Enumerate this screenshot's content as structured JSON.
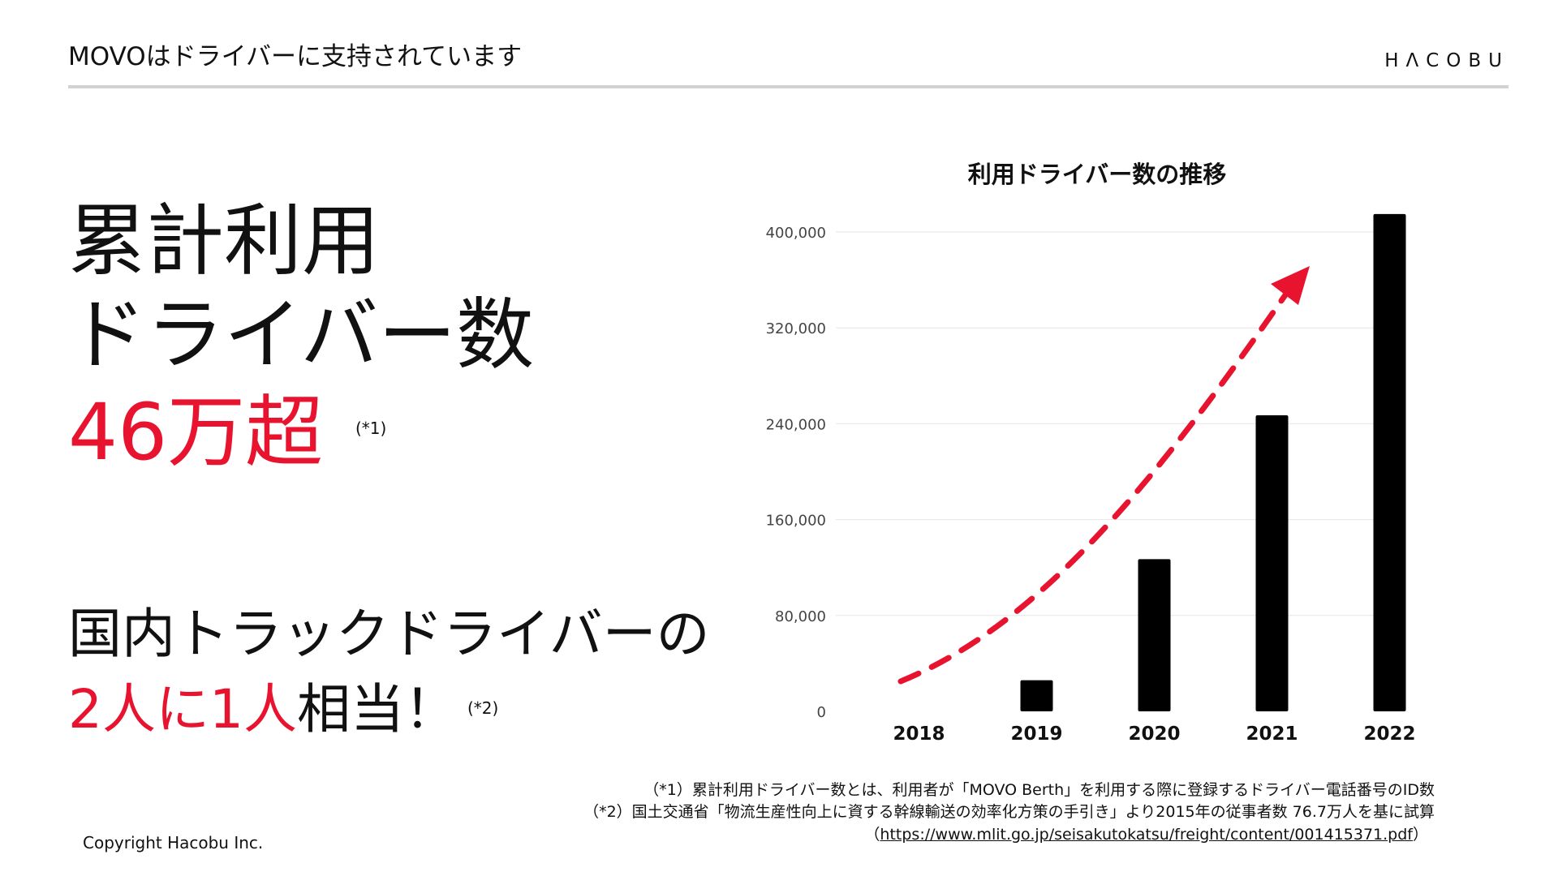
{
  "colors": {
    "accent": "#e8132e",
    "bar": "#000000",
    "grid": "#e6e6e6",
    "rule": "#d2d2d2"
  },
  "header": {
    "title": "MOVOはドライバーに支持されています",
    "logo": "HΛCOBU"
  },
  "headline": {
    "line1": "累計利用",
    "line2": "ドライバー数",
    "line3": "46万超",
    "note": "(*1)"
  },
  "subheadline": {
    "line1": "国内トラックドライバーの",
    "red_part": "2人に1人",
    "rest": "相当！",
    "note": "(*2)"
  },
  "chart_data": {
    "type": "bar",
    "title": "利用ドライバー数の推移",
    "categories": [
      "2018",
      "2019",
      "2020",
      "2021",
      "2022"
    ],
    "values": [
      0,
      26000,
      127000,
      247000,
      415000
    ],
    "ylim": [
      0,
      400000
    ],
    "yticks": [
      0,
      80000,
      160000,
      240000,
      320000,
      400000
    ],
    "ytick_labels": [
      "0",
      "80,000",
      "160,000",
      "240,000",
      "320,000",
      "400,000"
    ],
    "xlabel": "",
    "ylabel": "",
    "grid": true,
    "annotations": [
      {
        "type": "dashed-arrow",
        "from": "2018",
        "to": "2022",
        "meaning": "upward trend"
      }
    ]
  },
  "footnotes": {
    "f1": "（*1）累計利用ドライバー数とは、利用者が「MOVO Berth」を利用する際に登録するドライバー電話番号のID数",
    "f2": "（*2）国土交通省「物流生産性向上に資する幹線輸送の効率化方策の手引き」より2015年の従事者数 76.7万人を基に試算",
    "f3_open": "（",
    "f3_link": "https://www.mlit.go.jp/seisakutokatsu/freight/content/001415371.pdf",
    "f3_close": "）"
  },
  "copyright": "Copyright Hacobu Inc."
}
